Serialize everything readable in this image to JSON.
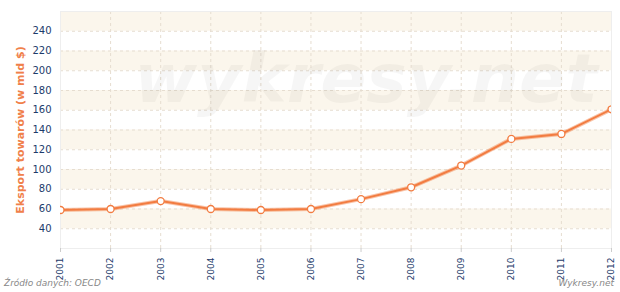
{
  "chart_data": {
    "type": "line",
    "y_label": "Eksport towarów (w mld $)",
    "x": [
      2001,
      2002,
      2003,
      2004,
      2005,
      2006,
      2007,
      2008,
      2009,
      2010,
      2011,
      2012
    ],
    "values": [
      59,
      60,
      68,
      60,
      59,
      60,
      70,
      82,
      104,
      131,
      136,
      161
    ],
    "color": "#f27c41",
    "marker": "circle",
    "xlim": [
      2001,
      2012
    ],
    "xticks": [
      2001,
      2002,
      2003,
      2004,
      2005,
      2006,
      2007,
      2008,
      2009,
      2010,
      2011,
      2012
    ],
    "ylim": [
      20,
      260
    ],
    "yticks": [
      40,
      60,
      80,
      100,
      120,
      140,
      160,
      180,
      200,
      220,
      240
    ],
    "grid": true,
    "annotations": [
      "Źródło danych: OECD",
      "Wykresy.net",
      "wykresy.net"
    ]
  }
}
